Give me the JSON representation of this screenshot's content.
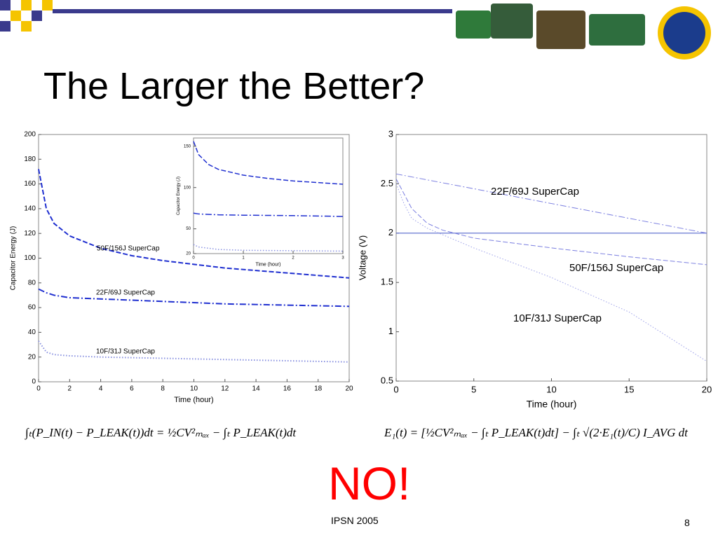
{
  "slide": {
    "title": "The Larger the Better?",
    "equations": [
      "∫ₜ(P_IN(t) − P_LEAK(t))dt = ½CV²ₘₐₓ − ∫ₜ P_LEAK(t)dt",
      "E₁(t) = [½CV²ₘₐₓ − ∫ₜ P_LEAK(t)dt] − ∫ₜ √(2·E₁(t)/C) I_AVG dt"
    ],
    "answer": "NO!",
    "footer": "IPSN 2005",
    "page": "8"
  },
  "chart_data": [
    {
      "type": "line",
      "xlabel": "Time (hour)",
      "ylabel": "Capacitor Energy (J)",
      "xlim": [
        0,
        20
      ],
      "xticks": [
        0,
        2,
        4,
        6,
        8,
        10,
        12,
        14,
        16,
        18,
        20
      ],
      "ylim": [
        0,
        200
      ],
      "yticks": [
        0,
        20,
        40,
        60,
        80,
        100,
        120,
        140,
        160,
        180,
        200
      ],
      "series": [
        {
          "name": "50F/156J SuperCap",
          "color": "#1f2fd0",
          "style": "dashed",
          "x": [
            0,
            0.5,
            1,
            2,
            4,
            6,
            8,
            10,
            12,
            14,
            16,
            18,
            20
          ],
          "values": [
            172,
            140,
            128,
            118,
            108,
            102,
            98,
            95,
            92,
            90,
            88,
            86,
            84
          ]
        },
        {
          "name": "22F/69J SuperCap",
          "color": "#1f2fd0",
          "style": "dashdot",
          "x": [
            0,
            0.5,
            1,
            2,
            4,
            6,
            8,
            10,
            12,
            14,
            16,
            18,
            20
          ],
          "values": [
            75,
            72,
            70,
            68,
            67,
            66,
            65,
            64,
            63,
            62.5,
            62,
            61.5,
            61
          ]
        },
        {
          "name": "10F/31J SuperCap",
          "color": "#8890e0",
          "style": "dotted",
          "x": [
            0,
            0.5,
            1,
            2,
            4,
            6,
            8,
            10,
            12,
            14,
            16,
            18,
            20
          ],
          "values": [
            33,
            24,
            22,
            21,
            20,
            19.5,
            19,
            18.5,
            18,
            17.5,
            17,
            16.5,
            16
          ]
        }
      ]
    },
    {
      "type": "line",
      "xlabel": "Time (hour)",
      "ylabel": "Capacitor Energy (J)",
      "xlim": [
        0,
        3
      ],
      "xticks": [
        0,
        1,
        2,
        3
      ],
      "ylim": [
        20,
        160
      ],
      "yticks": [
        20,
        50,
        100,
        150
      ],
      "series": [
        {
          "color": "#1f2fd0",
          "style": "dashed",
          "x": [
            0,
            0.1,
            0.3,
            0.5,
            1,
            1.5,
            2,
            2.5,
            3
          ],
          "values": [
            156,
            140,
            128,
            122,
            115,
            111,
            108,
            106,
            104
          ]
        },
        {
          "color": "#1f2fd0",
          "style": "dashdot",
          "x": [
            0,
            0.1,
            0.5,
            1,
            2,
            3
          ],
          "values": [
            69,
            68,
            67,
            66.5,
            66,
            65
          ]
        },
        {
          "color": "#8890e0",
          "style": "dotted",
          "x": [
            0,
            0.1,
            0.5,
            1,
            2,
            3
          ],
          "values": [
            31,
            28,
            25,
            24,
            23.5,
            23
          ]
        }
      ]
    },
    {
      "type": "line",
      "xlabel": "Time (hour)",
      "ylabel": "Voltage (V)",
      "xlim": [
        0,
        20
      ],
      "xticks": [
        0,
        5,
        10,
        15,
        20
      ],
      "ylim": [
        0.5,
        3
      ],
      "yticks": [
        0.5,
        1,
        1.5,
        2,
        2.5,
        3
      ],
      "hline": 2,
      "hline_color": "#5566cc",
      "series": [
        {
          "name": "22F/69J SuperCap",
          "color": "#7a7ee0",
          "style": "dashdot",
          "x": [
            0,
            5,
            10,
            15,
            20
          ],
          "values": [
            2.6,
            2.45,
            2.3,
            2.15,
            2.0
          ]
        },
        {
          "name": "50F/156J SuperCap",
          "color": "#7a7ee0",
          "style": "dashed",
          "x": [
            0,
            1,
            2,
            3,
            5,
            10,
            15,
            20
          ],
          "values": [
            2.55,
            2.25,
            2.1,
            2.03,
            1.95,
            1.85,
            1.76,
            1.68
          ]
        },
        {
          "name": "10F/31J SuperCap",
          "color": "#9a9ee8",
          "style": "dotted",
          "x": [
            0,
            0.5,
            1,
            2,
            5,
            10,
            15,
            20
          ],
          "values": [
            2.5,
            2.3,
            2.15,
            2.05,
            1.85,
            1.55,
            1.2,
            0.7
          ]
        }
      ]
    }
  ]
}
